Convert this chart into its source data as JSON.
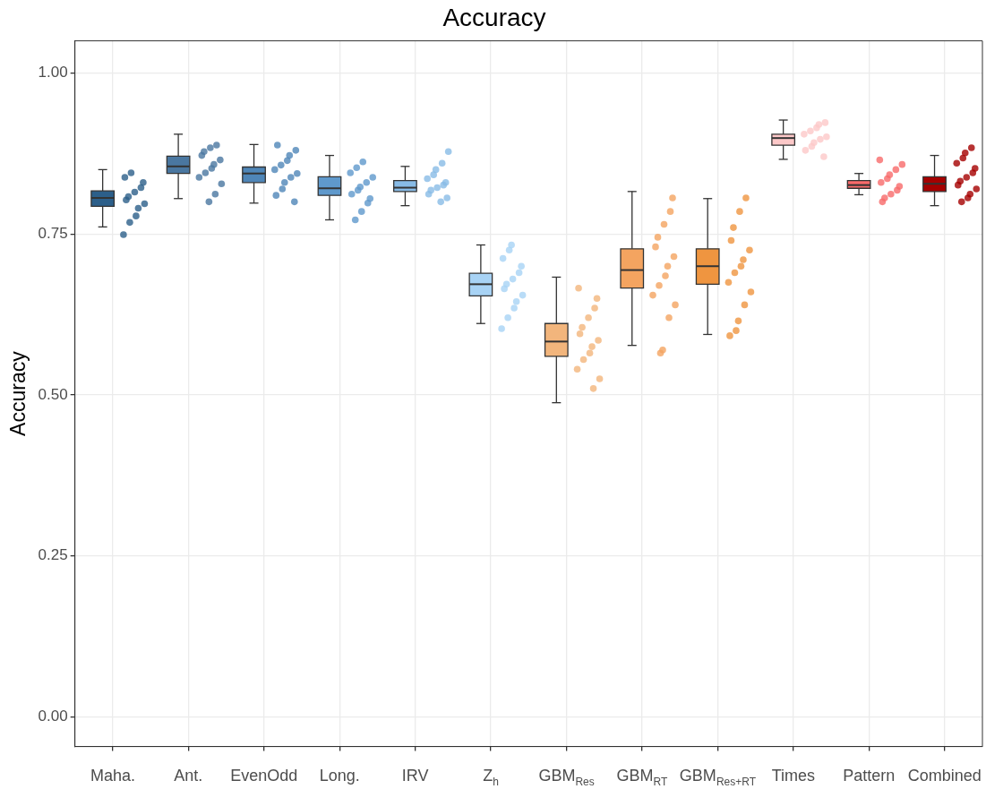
{
  "chart_data": {
    "type": "box",
    "title": "Accuracy",
    "ylabel": "Accuracy",
    "categories": [
      "Maha.",
      "Ant.",
      "EvenOdd",
      "Long.",
      "IRV",
      "Z$_{h}$",
      "GBM$_{Res}$",
      "GBM$_{RT}$",
      "GBM$_{Res+RT}$",
      "Times",
      "Pattern",
      "Combined"
    ],
    "ylim": [
      -0.046,
      1.05
    ],
    "yticks": [
      {
        "value": 0,
        "label": "0.00"
      },
      {
        "value": 0.25,
        "label": "0.25"
      },
      {
        "value": 0.5,
        "label": "0.50"
      },
      {
        "value": 0.75,
        "label": "0.75"
      },
      {
        "value": 1,
        "label": "1.00"
      }
    ],
    "grid": true,
    "series": [
      {
        "colors": [
          "#2c5f8a",
          "#4a77a0",
          "#4f86b8",
          "#5f99cc",
          "#88bbe6",
          "#a8d3f5",
          "#f2b57c",
          "#f4a460",
          "#ef9540",
          "#fcc8c8",
          "#f86a6a",
          "#a50000"
        ],
        "boxes": [
          {
            "low": 0.761,
            "q1": 0.793,
            "median": 0.806,
            "q3": 0.817,
            "high": 0.85
          },
          {
            "low": 0.805,
            "q1": 0.844,
            "median": 0.855,
            "q3": 0.871,
            "high": 0.905
          },
          {
            "low": 0.798,
            "q1": 0.83,
            "median": 0.844,
            "q3": 0.854,
            "high": 0.889
          },
          {
            "low": 0.772,
            "q1": 0.81,
            "median": 0.821,
            "q3": 0.839,
            "high": 0.872
          },
          {
            "low": 0.794,
            "q1": 0.816,
            "median": 0.822,
            "q3": 0.833,
            "high": 0.855
          },
          {
            "low": 0.611,
            "q1": 0.654,
            "median": 0.672,
            "q3": 0.689,
            "high": 0.733
          },
          {
            "low": 0.488,
            "q1": 0.56,
            "median": 0.583,
            "q3": 0.611,
            "high": 0.683
          },
          {
            "low": 0.577,
            "q1": 0.666,
            "median": 0.694,
            "q3": 0.727,
            "high": 0.816
          },
          {
            "low": 0.594,
            "q1": 0.672,
            "median": 0.7,
            "q3": 0.727,
            "high": 0.805
          },
          {
            "low": 0.866,
            "q1": 0.888,
            "median": 0.899,
            "q3": 0.905,
            "high": 0.927
          },
          {
            "low": 0.811,
            "q1": 0.821,
            "median": 0.826,
            "q3": 0.833,
            "high": 0.844
          },
          {
            "low": 0.794,
            "q1": 0.816,
            "median": 0.828,
            "q3": 0.839,
            "high": 0.872
          }
        ]
      },
      {
        "type": "scatter",
        "marker": "circle",
        "x": [
          "Maha.",
          "Maha.",
          "Maha.",
          "Maha.",
          "Maha.",
          "Maha.",
          "Maha.",
          "Maha.",
          "Maha.",
          "Maha.",
          "Maha.",
          "Maha.",
          "Ant.",
          "Ant.",
          "Ant.",
          "Ant.",
          "Ant.",
          "Ant.",
          "Ant.",
          "Ant.",
          "Ant.",
          "Ant.",
          "Ant.",
          "Ant.",
          "EvenOdd",
          "EvenOdd",
          "EvenOdd",
          "EvenOdd",
          "EvenOdd",
          "EvenOdd",
          "EvenOdd",
          "EvenOdd",
          "EvenOdd",
          "EvenOdd",
          "EvenOdd",
          "EvenOdd",
          "Long.",
          "Long.",
          "Long.",
          "Long.",
          "Long.",
          "Long.",
          "Long.",
          "Long.",
          "Long.",
          "Long.",
          "Long.",
          "Long.",
          "IRV",
          "IRV",
          "IRV",
          "IRV",
          "IRV",
          "IRV",
          "IRV",
          "IRV",
          "IRV",
          "IRV",
          "IRV",
          "IRV",
          "Z$_{h}$",
          "Z$_{h}$",
          "Z$_{h}$",
          "Z$_{h}$",
          "Z$_{h}$",
          "Z$_{h}$",
          "Z$_{h}$",
          "Z$_{h}$",
          "Z$_{h}$",
          "Z$_{h}$",
          "Z$_{h}$",
          "Z$_{h}$",
          "Z$_{h}$",
          "GBM$_{Res}$",
          "GBM$_{Res}$",
          "GBM$_{Res}$",
          "GBM$_{Res}$",
          "GBM$_{Res}$",
          "GBM$_{Res}$",
          "GBM$_{Res}$",
          "GBM$_{Res}$",
          "GBM$_{Res}$",
          "GBM$_{Res}$",
          "GBM$_{Res}$",
          "GBM$_{Res}$",
          "GBM$_{Res}$",
          "GBM$_{RT}$",
          "GBM$_{RT}$",
          "GBM$_{RT}$",
          "GBM$_{RT}$",
          "GBM$_{RT}$",
          "GBM$_{RT}$",
          "GBM$_{RT}$",
          "GBM$_{RT}$",
          "GBM$_{RT}$",
          "GBM$_{RT}$",
          "GBM$_{RT}$",
          "GBM$_{RT}$",
          "GBM$_{RT}$",
          "GBM$_{RT}$",
          "GBM$_{Res+RT}$",
          "GBM$_{Res+RT}$",
          "GBM$_{Res+RT}$",
          "GBM$_{Res+RT}$",
          "GBM$_{Res+RT}$",
          "GBM$_{Res+RT}$",
          "GBM$_{Res+RT}$",
          "GBM$_{Res+RT}$",
          "GBM$_{Res+RT}$",
          "GBM$_{Res+RT}$",
          "GBM$_{Res+RT}$",
          "GBM$_{Res+RT}$",
          "GBM$_{Res+RT}$",
          "GBM$_{Res+RT}$",
          "Times",
          "Times",
          "Times",
          "Times",
          "Times",
          "Times",
          "Times",
          "Times",
          "Times",
          "Times",
          "Times",
          "Pattern",
          "Pattern",
          "Pattern",
          "Pattern",
          "Pattern",
          "Pattern",
          "Pattern",
          "Pattern",
          "Pattern",
          "Pattern",
          "Pattern",
          "Combined",
          "Combined",
          "Combined",
          "Combined",
          "Combined",
          "Combined",
          "Combined",
          "Combined",
          "Combined",
          "Combined",
          "Combined",
          "Combined",
          "Combined"
        ],
        "values": [
          0.749,
          0.768,
          0.778,
          0.79,
          0.797,
          0.803,
          0.808,
          0.815,
          0.822,
          0.83,
          0.838,
          0.845,
          0.8,
          0.812,
          0.828,
          0.838,
          0.845,
          0.852,
          0.858,
          0.865,
          0.872,
          0.878,
          0.884,
          0.888,
          0.8,
          0.81,
          0.82,
          0.83,
          0.838,
          0.844,
          0.85,
          0.857,
          0.864,
          0.872,
          0.88,
          0.888,
          0.772,
          0.785,
          0.798,
          0.805,
          0.812,
          0.818,
          0.823,
          0.83,
          0.838,
          0.845,
          0.853,
          0.862,
          0.8,
          0.806,
          0.812,
          0.818,
          0.822,
          0.826,
          0.83,
          0.836,
          0.842,
          0.85,
          0.86,
          0.878,
          0.603,
          0.62,
          0.635,
          0.645,
          0.655,
          0.665,
          0.672,
          0.68,
          0.69,
          0.7,
          0.712,
          0.725,
          0.733,
          0.51,
          0.525,
          0.54,
          0.555,
          0.565,
          0.575,
          0.585,
          0.595,
          0.605,
          0.62,
          0.635,
          0.65,
          0.666,
          0.565,
          0.57,
          0.62,
          0.64,
          0.655,
          0.67,
          0.685,
          0.7,
          0.715,
          0.73,
          0.745,
          0.765,
          0.785,
          0.806,
          0.592,
          0.6,
          0.615,
          0.64,
          0.66,
          0.675,
          0.69,
          0.7,
          0.71,
          0.725,
          0.74,
          0.76,
          0.785,
          0.806,
          0.87,
          0.88,
          0.886,
          0.892,
          0.897,
          0.901,
          0.905,
          0.91,
          0.915,
          0.92,
          0.923,
          0.8,
          0.806,
          0.812,
          0.818,
          0.824,
          0.83,
          0.836,
          0.842,
          0.85,
          0.858,
          0.865,
          0.8,
          0.806,
          0.812,
          0.82,
          0.826,
          0.832,
          0.838,
          0.845,
          0.852,
          0.86,
          0.868,
          0.876,
          0.884
        ],
        "colors": [
          "#2c5f8a",
          "#2c5f8a",
          "#2c5f8a",
          "#2c5f8a",
          "#2c5f8a",
          "#2c5f8a",
          "#2c5f8a",
          "#2c5f8a",
          "#2c5f8a",
          "#2c5f8a",
          "#2c5f8a",
          "#2c5f8a",
          "#4a77a0",
          "#4a77a0",
          "#4a77a0",
          "#4a77a0",
          "#4a77a0",
          "#4a77a0",
          "#4a77a0",
          "#4a77a0",
          "#4a77a0",
          "#4a77a0",
          "#4a77a0",
          "#4a77a0",
          "#4f86b8",
          "#4f86b8",
          "#4f86b8",
          "#4f86b8",
          "#4f86b8",
          "#4f86b8",
          "#4f86b8",
          "#4f86b8",
          "#4f86b8",
          "#4f86b8",
          "#4f86b8",
          "#4f86b8",
          "#5f99cc",
          "#5f99cc",
          "#5f99cc",
          "#5f99cc",
          "#5f99cc",
          "#5f99cc",
          "#5f99cc",
          "#5f99cc",
          "#5f99cc",
          "#5f99cc",
          "#5f99cc",
          "#5f99cc",
          "#88bbe6",
          "#88bbe6",
          "#88bbe6",
          "#88bbe6",
          "#88bbe6",
          "#88bbe6",
          "#88bbe6",
          "#88bbe6",
          "#88bbe6",
          "#88bbe6",
          "#88bbe6",
          "#88bbe6",
          "#a8d3f5",
          "#a8d3f5",
          "#a8d3f5",
          "#a8d3f5",
          "#a8d3f5",
          "#a8d3f5",
          "#a8d3f5",
          "#a8d3f5",
          "#a8d3f5",
          "#a8d3f5",
          "#a8d3f5",
          "#a8d3f5",
          "#a8d3f5",
          "#f2b57c",
          "#f2b57c",
          "#f2b57c",
          "#f2b57c",
          "#f2b57c",
          "#f2b57c",
          "#f2b57c",
          "#f2b57c",
          "#f2b57c",
          "#f2b57c",
          "#f2b57c",
          "#f2b57c",
          "#f2b57c",
          "#f4a460",
          "#f4a460",
          "#f4a460",
          "#f4a460",
          "#f4a460",
          "#f4a460",
          "#f4a460",
          "#f4a460",
          "#f4a460",
          "#f4a460",
          "#f4a460",
          "#f4a460",
          "#f4a460",
          "#f4a460",
          "#ef9540",
          "#ef9540",
          "#ef9540",
          "#ef9540",
          "#ef9540",
          "#ef9540",
          "#ef9540",
          "#ef9540",
          "#ef9540",
          "#ef9540",
          "#ef9540",
          "#ef9540",
          "#ef9540",
          "#ef9540",
          "#fcc8c8",
          "#fcc8c8",
          "#fcc8c8",
          "#fcc8c8",
          "#fcc8c8",
          "#fcc8c8",
          "#fcc8c8",
          "#fcc8c8",
          "#fcc8c8",
          "#fcc8c8",
          "#fcc8c8",
          "#f86a6a",
          "#f86a6a",
          "#f86a6a",
          "#f86a6a",
          "#f86a6a",
          "#f86a6a",
          "#f86a6a",
          "#f86a6a",
          "#f86a6a",
          "#f86a6a",
          "#f86a6a",
          "#a50000",
          "#a50000",
          "#a50000",
          "#a50000",
          "#a50000",
          "#a50000",
          "#a50000",
          "#a50000",
          "#a50000",
          "#a50000",
          "#a50000",
          "#a50000",
          "#a50000"
        ]
      }
    ]
  }
}
